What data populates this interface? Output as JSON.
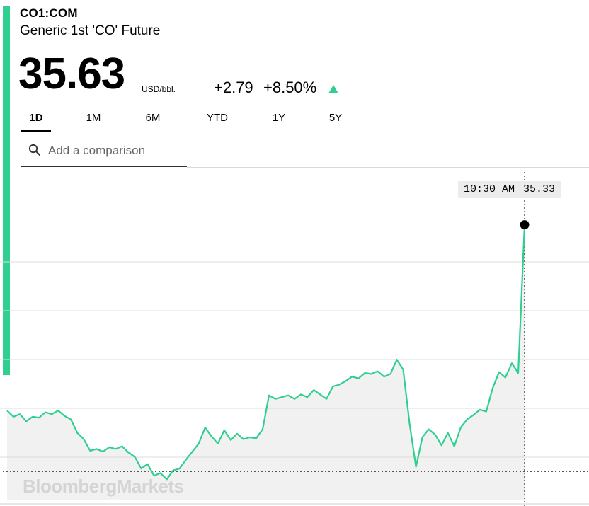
{
  "header": {
    "ticker": "CO1:COM",
    "name": "Generic 1st 'CO' Future",
    "price": "35.63",
    "unit": "USD/bbl.",
    "change": "+2.79",
    "change_pct": "+8.50%",
    "direction": "up",
    "accent_color": "#2fcf90"
  },
  "tabs": [
    {
      "label": "1D",
      "active": true
    },
    {
      "label": "1M",
      "active": false
    },
    {
      "label": "6M",
      "active": false
    },
    {
      "label": "YTD",
      "active": false
    },
    {
      "label": "1Y",
      "active": false
    },
    {
      "label": "5Y",
      "active": false
    }
  ],
  "search": {
    "placeholder": "Add a comparison",
    "icon": "search-icon"
  },
  "tooltip": {
    "time": "10:30 AM",
    "value": "35.33"
  },
  "watermark": "BloombergMarkets",
  "chart_data": {
    "type": "area",
    "line_color": "#2fcf90",
    "fill_color": "#f1f1f1",
    "grid": "horizontal",
    "ylim": [
      32.3,
      35.85
    ],
    "series": [
      {
        "values": [
          33.25,
          33.18,
          33.21,
          33.13,
          33.18,
          33.17,
          33.23,
          33.21,
          33.25,
          33.19,
          33.15,
          33.0,
          32.93,
          32.8,
          32.82,
          32.79,
          32.84,
          32.82,
          32.85,
          32.78,
          32.73,
          32.6,
          32.65,
          32.52,
          32.55,
          32.48,
          32.58,
          32.6,
          32.7,
          32.79,
          32.88,
          33.06,
          32.96,
          32.88,
          33.03,
          32.92,
          32.99,
          32.93,
          32.95,
          32.94,
          33.04,
          33.42,
          33.38,
          33.4,
          33.42,
          33.38,
          33.43,
          33.4,
          33.48,
          33.43,
          33.38,
          33.52,
          33.54,
          33.58,
          33.63,
          33.61,
          33.67,
          33.66,
          33.69,
          33.63,
          33.66,
          33.82,
          33.71,
          33.1,
          32.62,
          32.95,
          33.04,
          32.98,
          32.86,
          33.0,
          32.85,
          33.06,
          33.15,
          33.2,
          33.26,
          33.24,
          33.5,
          33.68,
          33.62,
          33.78,
          33.67,
          35.33
        ]
      }
    ]
  }
}
